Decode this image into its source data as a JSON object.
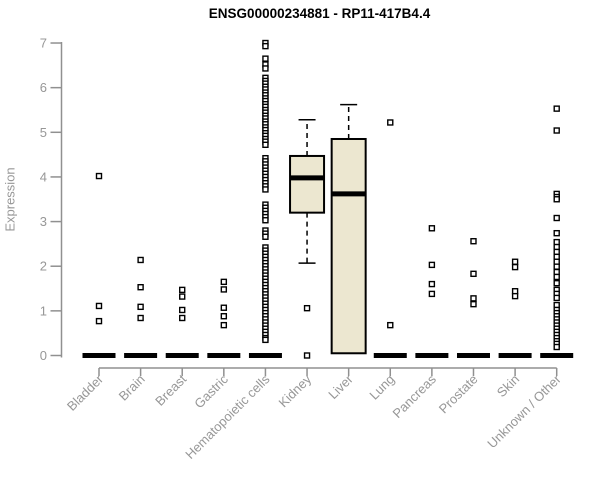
{
  "chart_data": {
    "type": "boxplot",
    "title": "ENSG00000234881 - RP11-417B4.4",
    "ylabel": "Expression",
    "xlabel": "",
    "ylim": [
      0,
      7
    ],
    "yticks": [
      0,
      1,
      2,
      3,
      4,
      5,
      6,
      7
    ],
    "grid": false,
    "legend": "none",
    "colors": {
      "title_text": "#000000",
      "axis_line": "#909090",
      "tick_text": "#979797",
      "box_fill": "#ece7d0",
      "box_stroke": "#000000",
      "median": "#000000",
      "point_stroke": "#000000",
      "zero_bar": "#000000"
    },
    "categories": [
      "Bladder",
      "Brain",
      "Breast",
      "Gastric",
      "Hematopoietic cells",
      "Kidney",
      "Liver",
      "Lung",
      "Pancreas",
      "Prostate",
      "Skin",
      "Unknown / Other"
    ],
    "series": [
      {
        "name": "Bladder",
        "box": null,
        "zero_bar": true,
        "points": [
          4.02,
          1.11,
          0.77
        ]
      },
      {
        "name": "Brain",
        "box": null,
        "zero_bar": true,
        "points": [
          2.14,
          1.53,
          1.09,
          0.84
        ]
      },
      {
        "name": "Breast",
        "box": null,
        "zero_bar": true,
        "points": [
          1.47,
          1.32,
          1.02,
          0.84
        ]
      },
      {
        "name": "Gastric",
        "box": null,
        "zero_bar": true,
        "points": [
          1.65,
          1.48,
          1.07,
          0.88,
          0.68
        ]
      },
      {
        "name": "Hematopoietic cells",
        "box": null,
        "zero_bar": true,
        "points": [
          7.0,
          6.93,
          6.65,
          6.52,
          6.43,
          6.22,
          6.15,
          6.09,
          6.02,
          5.96,
          5.89,
          5.83,
          5.76,
          5.7,
          5.63,
          5.57,
          5.5,
          5.44,
          5.37,
          5.31,
          5.24,
          5.18,
          5.11,
          5.05,
          4.98,
          4.92,
          4.85,
          4.79,
          4.72,
          4.42,
          4.35,
          4.28,
          4.21,
          4.14,
          4.07,
          4.0,
          3.93,
          3.86,
          3.79,
          3.72,
          3.38,
          3.31,
          3.24,
          3.17,
          3.1,
          3.03,
          2.8,
          2.73,
          2.66,
          2.42,
          2.35,
          2.28,
          2.21,
          2.14,
          2.07,
          2.0,
          1.93,
          1.86,
          1.79,
          1.72,
          1.65,
          1.58,
          1.51,
          1.44,
          1.37,
          1.3,
          1.23,
          1.16,
          1.09,
          1.02,
          0.95,
          0.88,
          0.81,
          0.74,
          0.67,
          0.6,
          0.53,
          0.46,
          0.39,
          0.35
        ]
      },
      {
        "name": "Kidney",
        "box": {
          "q1": 3.2,
          "median": 3.98,
          "q3": 4.47,
          "whisker_low": 2.07,
          "whisker_high": 5.28
        },
        "zero_bar": false,
        "points": [
          1.06,
          0.0
        ]
      },
      {
        "name": "Liver",
        "box": {
          "q1": 0.05,
          "median": 3.62,
          "q3": 4.85,
          "whisker_low": null,
          "whisker_high": 5.62
        },
        "zero_bar": false,
        "points": []
      },
      {
        "name": "Lung",
        "box": null,
        "zero_bar": true,
        "points": [
          5.22,
          0.68
        ]
      },
      {
        "name": "Pancreas",
        "box": null,
        "zero_bar": true,
        "points": [
          2.85,
          2.03,
          1.6,
          1.38
        ]
      },
      {
        "name": "Prostate",
        "box": null,
        "zero_bar": true,
        "points": [
          2.56,
          1.83,
          1.28,
          1.15
        ]
      },
      {
        "name": "Skin",
        "box": null,
        "zero_bar": true,
        "points": [
          2.1,
          1.98,
          1.44,
          1.33
        ]
      },
      {
        "name": "Unknown / Other",
        "box": null,
        "zero_bar": true,
        "points": [
          5.53,
          5.04,
          3.62,
          3.55,
          3.5,
          3.08,
          2.74,
          2.54,
          2.43,
          2.32,
          2.21,
          2.1,
          1.99,
          1.87,
          1.76,
          1.62,
          1.47,
          1.38,
          1.29,
          1.13,
          1.02,
          0.95,
          0.88,
          0.81,
          0.74,
          0.67,
          0.6,
          0.53,
          0.46,
          0.39,
          0.32,
          0.26,
          0.19
        ]
      }
    ]
  }
}
